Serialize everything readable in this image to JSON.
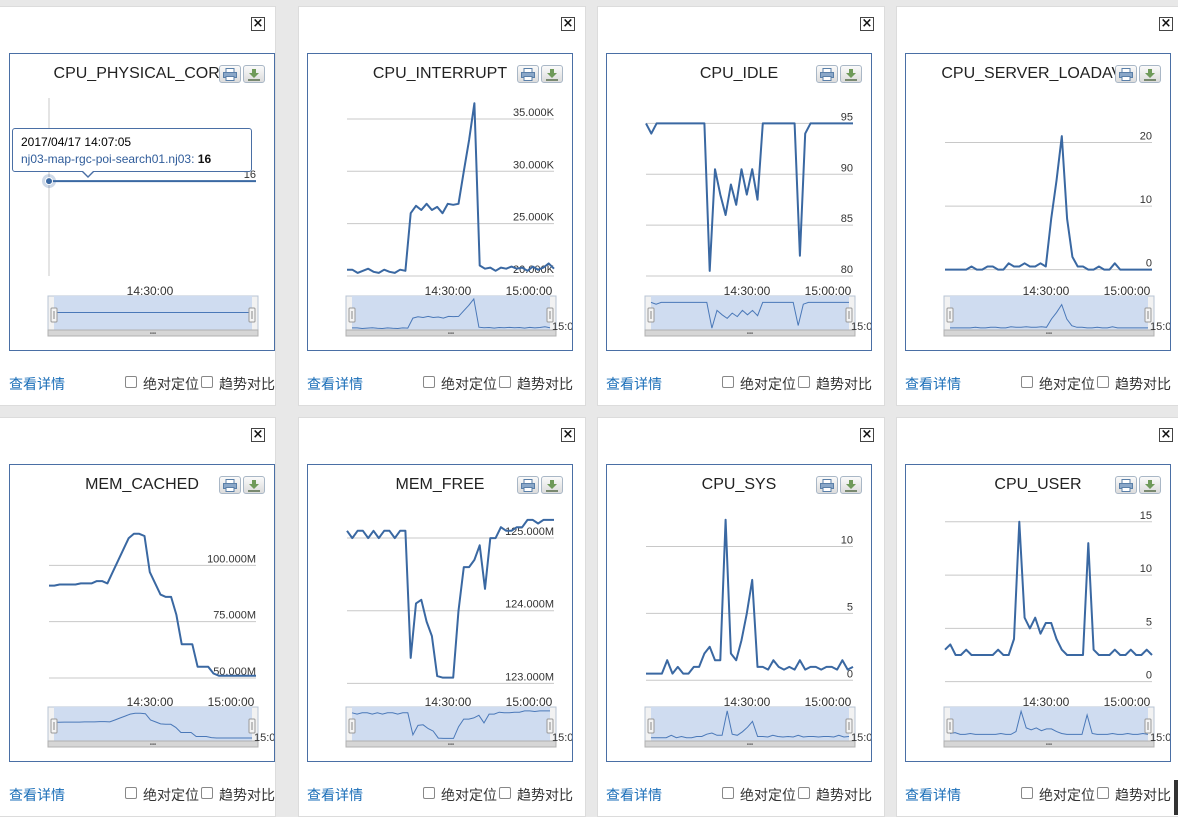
{
  "ui": {
    "detail_link": "查看详情",
    "abs_label": "绝对定位",
    "trend_label": "趋势对比"
  },
  "cards": [
    {
      "title": "CPU_PHYSICAL_CORE",
      "tooltip": {
        "time": "2017/04/17 14:07:05",
        "series": "nj03-map-rgc-poi-search01.nj03:",
        "value": "16"
      },
      "chart_data": {
        "type": "line",
        "title": "CPU_PHYSICAL_CORE",
        "x_ticks": [
          "14:30:00"
        ],
        "y_ticks": [
          "16"
        ],
        "ylim": [
          0,
          30
        ],
        "values": [
          16,
          16,
          16,
          16,
          16,
          16,
          16,
          16,
          16,
          16,
          16,
          16,
          16,
          16,
          16,
          16,
          16,
          16,
          16,
          16,
          16,
          16,
          16,
          16,
          16,
          16,
          16,
          16,
          16,
          16,
          16,
          16,
          16,
          16,
          16,
          16,
          16,
          16,
          16,
          16
        ],
        "navigator_label": ""
      }
    },
    {
      "title": "CPU_INTERRUPT",
      "chart_data": {
        "type": "line",
        "title": "CPU_INTERRUPT",
        "x_ticks": [
          "14:30:00",
          "15:00:00"
        ],
        "y_ticks": [
          "20.000K",
          "25.000K",
          "30.000K",
          "35.000K"
        ],
        "ylim": [
          20000,
          37000
        ],
        "values": [
          20600,
          20600,
          20300,
          20500,
          20700,
          20400,
          20300,
          20600,
          20400,
          20300,
          20600,
          20500,
          26000,
          26700,
          26300,
          26900,
          26300,
          26600,
          26000,
          26900,
          26800,
          26900,
          30000,
          33000,
          36500,
          21000,
          20700,
          20800,
          20500,
          20800,
          20700,
          20900,
          20700,
          20800,
          20500,
          20900,
          20600,
          20800,
          21200,
          20700
        ],
        "navigator_label": "15:0"
      }
    },
    {
      "title": "CPU_IDLE",
      "chart_data": {
        "type": "line",
        "title": "CPU_IDLE",
        "x_ticks": [
          "14:30:00",
          "15:00:00"
        ],
        "y_ticks": [
          "80",
          "85",
          "90",
          "95"
        ],
        "ylim": [
          80,
          97.5
        ],
        "values": [
          95,
          94,
          95,
          95,
          95,
          95,
          95,
          95,
          95,
          95,
          95,
          95,
          80.5,
          90.5,
          88,
          86,
          89,
          87,
          90.5,
          88,
          90.5,
          87.5,
          95,
          95,
          95,
          95,
          95,
          95,
          95,
          82,
          94,
          95,
          95,
          95,
          95,
          95,
          95,
          95,
          95,
          95
        ],
        "navigator_label": "15:0"
      }
    },
    {
      "title": "CPU_SERVER_LOADAVG",
      "chart_data": {
        "type": "line",
        "title": "CPU_SERVER_LOADAVG",
        "x_ticks": [
          "14:30:00",
          "15:00:00"
        ],
        "y_ticks": [
          "0",
          "10",
          "20"
        ],
        "ylim": [
          -1,
          27
        ],
        "values": [
          0,
          0,
          0,
          0,
          0,
          0.5,
          0,
          0,
          0.5,
          0.5,
          0,
          0,
          1,
          0.5,
          0.5,
          1,
          0.5,
          0.5,
          1,
          0.5,
          8,
          14,
          21,
          8,
          2,
          0.5,
          0.5,
          0,
          0,
          0.5,
          0,
          0,
          1,
          0,
          0,
          0,
          0,
          0,
          0,
          0
        ],
        "navigator_label": "15:0"
      }
    },
    {
      "title": "MEM_CACHED",
      "chart_data": {
        "type": "line",
        "title": "MEM_CACHED",
        "x_ticks": [
          "14:30:00",
          "15:00:00"
        ],
        "y_ticks": [
          "50.000M",
          "75.000M",
          "100.000M"
        ],
        "ylim": [
          46000000,
          125000000
        ],
        "values": [
          91000000,
          91000000,
          91500000,
          91500000,
          91500000,
          91500000,
          92000000,
          92000000,
          92000000,
          93000000,
          93000000,
          92000000,
          97000000,
          102000000,
          107000000,
          112000000,
          114000000,
          114000000,
          113000000,
          97000000,
          92000000,
          87000000,
          86000000,
          86000000,
          78000000,
          65000000,
          65000000,
          65000000,
          55000000,
          55000000,
          55000000,
          52000000,
          51000000,
          51000000,
          51000000,
          51000000,
          51000000,
          51000000,
          51000000,
          51000000
        ],
        "navigator_label": "15:0"
      }
    },
    {
      "title": "MEM_FREE",
      "chart_data": {
        "type": "line",
        "title": "MEM_FREE",
        "x_ticks": [
          "14:30:00",
          "15:00:00"
        ],
        "y_ticks": [
          "123.000M",
          "124.000M",
          "125.000M"
        ],
        "ylim": [
          122950000,
          125400000
        ],
        "values": [
          125100000,
          125000000,
          125100000,
          125100000,
          125000000,
          125100000,
          125000000,
          125100000,
          125100000,
          125000000,
          125100000,
          125100000,
          123350000,
          124100000,
          124150000,
          123850000,
          123650000,
          123100000,
          123080000,
          123080000,
          123080000,
          124000000,
          124600000,
          124600000,
          124700000,
          124900000,
          124300000,
          125000000,
          125000000,
          125150000,
          125100000,
          125100000,
          125150000,
          125150000,
          125250000,
          125250000,
          125200000,
          125250000,
          125250000,
          125250000
        ],
        "navigator_label": "15:0"
      }
    },
    {
      "title": "CPU_SYS",
      "chart_data": {
        "type": "line",
        "title": "CPU_SYS",
        "x_ticks": [
          "14:30:00",
          "15:00:00"
        ],
        "y_ticks": [
          "0",
          "5",
          "10"
        ],
        "ylim": [
          -0.5,
          12.8
        ],
        "values": [
          0.5,
          0.5,
          0.5,
          0.5,
          1.5,
          0.5,
          1,
          0.5,
          0.5,
          1,
          1,
          2,
          2.5,
          1.5,
          1.5,
          12,
          2,
          1.5,
          3,
          5,
          7.5,
          1,
          1,
          0.8,
          1.5,
          1,
          0.8,
          1,
          0.8,
          1.5,
          0.8,
          1,
          1,
          0.8,
          1,
          1,
          0.8,
          1.5,
          0.8,
          1
        ],
        "navigator_label": "15:0"
      }
    },
    {
      "title": "CPU_USER",
      "chart_data": {
        "type": "line",
        "title": "CPU_USER",
        "x_ticks": [
          "14:30:00",
          "15:00:00"
        ],
        "y_ticks": [
          "0",
          "5",
          "10",
          "15"
        ],
        "ylim": [
          -0.5,
          16.2
        ],
        "values": [
          3,
          3.5,
          2.5,
          2.5,
          3,
          2.5,
          2.5,
          2.5,
          2.5,
          2.5,
          3,
          2.5,
          2.5,
          4,
          15,
          6,
          5,
          6,
          4.5,
          5.5,
          5.5,
          4,
          3,
          2.5,
          2.5,
          2.5,
          2.5,
          13,
          3,
          2.5,
          2.5,
          2.5,
          3,
          2.5,
          2.5,
          3,
          2.5,
          2.5,
          3,
          2.5
        ],
        "navigator_label": "15:0"
      }
    }
  ]
}
